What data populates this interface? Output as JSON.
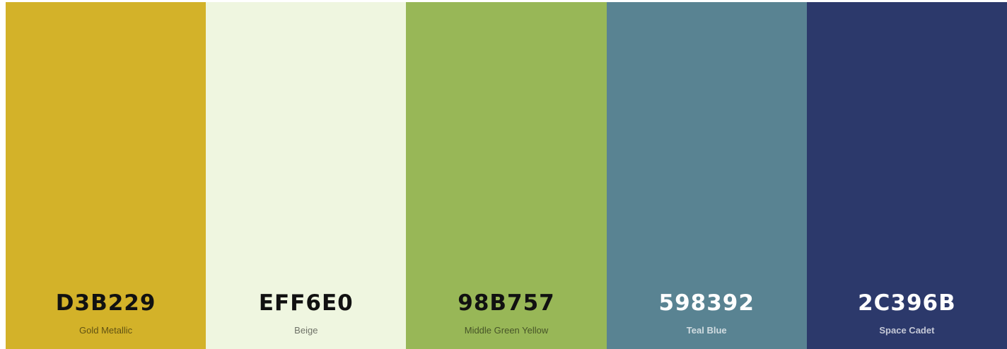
{
  "palette": {
    "colors": [
      {
        "hex": "D3B229",
        "name": "Gold Metallic",
        "color": "#D3B229"
      },
      {
        "hex": "EFF6E0",
        "name": "Beige",
        "color": "#EFF6E0"
      },
      {
        "hex": "98B757",
        "name": "Middle Green Yellow",
        "color": "#98B757"
      },
      {
        "hex": "598392",
        "name": "Teal Blue",
        "color": "#598392"
      },
      {
        "hex": "2C396B",
        "name": "Space Cadet",
        "color": "#2C396B"
      }
    ]
  }
}
